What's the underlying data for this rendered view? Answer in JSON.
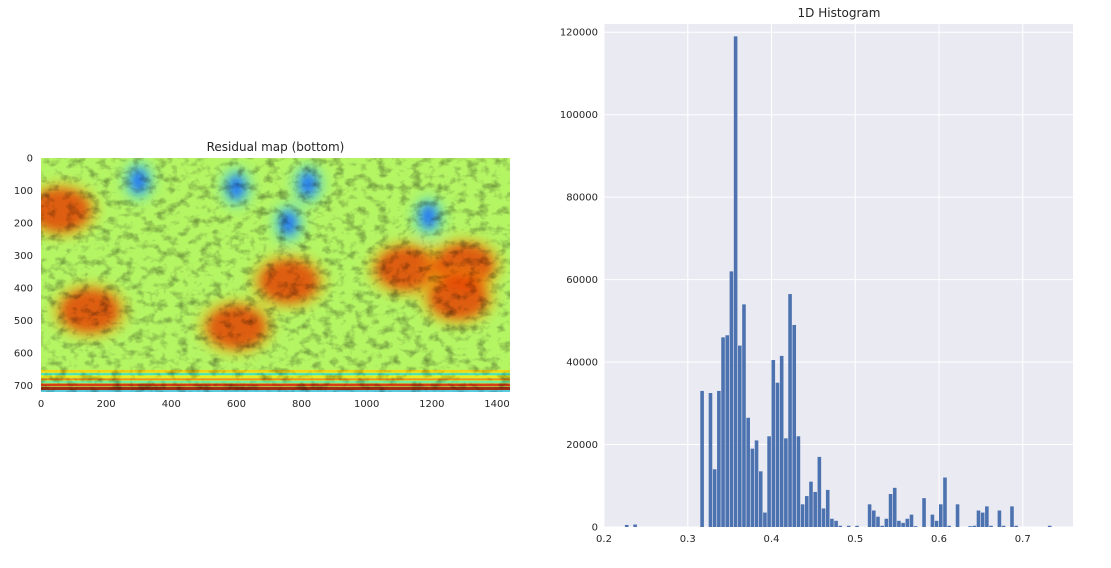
{
  "chart_data": [
    {
      "type": "heatmap",
      "title": "Residual map (bottom)",
      "colormap": "jet",
      "xlim": [
        0,
        1440
      ],
      "ylim": [
        720,
        0
      ],
      "xticks": [
        0,
        200,
        400,
        600,
        800,
        1000,
        1200,
        1400
      ],
      "yticks": [
        0,
        100,
        200,
        300,
        400,
        500,
        600,
        700
      ],
      "grid": false,
      "features": [
        {
          "x": 60,
          "y": 160,
          "kind": "high"
        },
        {
          "x": 150,
          "y": 470,
          "kind": "high"
        },
        {
          "x": 600,
          "y": 520,
          "kind": "high"
        },
        {
          "x": 760,
          "y": 380,
          "kind": "high"
        },
        {
          "x": 1120,
          "y": 340,
          "kind": "high"
        },
        {
          "x": 1300,
          "y": 330,
          "kind": "high"
        },
        {
          "x": 1280,
          "y": 430,
          "kind": "high"
        },
        {
          "x": 600,
          "y": 90,
          "kind": "low"
        },
        {
          "x": 820,
          "y": 80,
          "kind": "low"
        },
        {
          "x": 300,
          "y": 70,
          "kind": "low"
        },
        {
          "x": 1190,
          "y": 180,
          "kind": "low"
        },
        {
          "x": 760,
          "y": 200,
          "kind": "low"
        }
      ]
    },
    {
      "type": "bar",
      "title": "1D Histogram",
      "xlim": [
        0.2,
        0.76
      ],
      "ylim": [
        0,
        122000
      ],
      "xticks": [
        "0.2",
        "0.3",
        "0.4",
        "0.5",
        "0.6",
        "0.7"
      ],
      "yticks": [
        "0",
        "20000",
        "40000",
        "60000",
        "80000",
        "100000",
        "120000"
      ],
      "grid": true,
      "bin_width": 0.005,
      "bins": [
        {
          "x": 0.225,
          "y": 500
        },
        {
          "x": 0.235,
          "y": 600
        },
        {
          "x": 0.315,
          "y": 33000
        },
        {
          "x": 0.325,
          "y": 32500
        },
        {
          "x": 0.33,
          "y": 14000
        },
        {
          "x": 0.335,
          "y": 33000
        },
        {
          "x": 0.34,
          "y": 46000
        },
        {
          "x": 0.345,
          "y": 46500
        },
        {
          "x": 0.35,
          "y": 62000
        },
        {
          "x": 0.355,
          "y": 119000
        },
        {
          "x": 0.36,
          "y": 44000
        },
        {
          "x": 0.365,
          "y": 54000
        },
        {
          "x": 0.37,
          "y": 26500
        },
        {
          "x": 0.375,
          "y": 19000
        },
        {
          "x": 0.38,
          "y": 21000
        },
        {
          "x": 0.385,
          "y": 13500
        },
        {
          "x": 0.39,
          "y": 3500
        },
        {
          "x": 0.395,
          "y": 22000
        },
        {
          "x": 0.4,
          "y": 40500
        },
        {
          "x": 0.405,
          "y": 35000
        },
        {
          "x": 0.41,
          "y": 41500
        },
        {
          "x": 0.415,
          "y": 21500
        },
        {
          "x": 0.42,
          "y": 56500
        },
        {
          "x": 0.425,
          "y": 49000
        },
        {
          "x": 0.43,
          "y": 22000
        },
        {
          "x": 0.435,
          "y": 5500
        },
        {
          "x": 0.44,
          "y": 7500
        },
        {
          "x": 0.445,
          "y": 11000
        },
        {
          "x": 0.45,
          "y": 8500
        },
        {
          "x": 0.455,
          "y": 17000
        },
        {
          "x": 0.46,
          "y": 4500
        },
        {
          "x": 0.465,
          "y": 9000
        },
        {
          "x": 0.47,
          "y": 2000
        },
        {
          "x": 0.475,
          "y": 1500
        },
        {
          "x": 0.48,
          "y": 300
        },
        {
          "x": 0.49,
          "y": 300
        },
        {
          "x": 0.5,
          "y": 300
        },
        {
          "x": 0.515,
          "y": 5500
        },
        {
          "x": 0.52,
          "y": 4000
        },
        {
          "x": 0.525,
          "y": 2500
        },
        {
          "x": 0.53,
          "y": 300
        },
        {
          "x": 0.535,
          "y": 2000
        },
        {
          "x": 0.54,
          "y": 8000
        },
        {
          "x": 0.545,
          "y": 9500
        },
        {
          "x": 0.55,
          "y": 1500
        },
        {
          "x": 0.555,
          "y": 1000
        },
        {
          "x": 0.56,
          "y": 2000
        },
        {
          "x": 0.565,
          "y": 3000
        },
        {
          "x": 0.57,
          "y": 200
        },
        {
          "x": 0.58,
          "y": 7000
        },
        {
          "x": 0.59,
          "y": 3000
        },
        {
          "x": 0.595,
          "y": 1500
        },
        {
          "x": 0.6,
          "y": 5500
        },
        {
          "x": 0.605,
          "y": 12000
        },
        {
          "x": 0.61,
          "y": 300
        },
        {
          "x": 0.62,
          "y": 5500
        },
        {
          "x": 0.635,
          "y": 200
        },
        {
          "x": 0.64,
          "y": 300
        },
        {
          "x": 0.645,
          "y": 4000
        },
        {
          "x": 0.65,
          "y": 3500
        },
        {
          "x": 0.655,
          "y": 5000
        },
        {
          "x": 0.66,
          "y": 300
        },
        {
          "x": 0.67,
          "y": 4000
        },
        {
          "x": 0.675,
          "y": 300
        },
        {
          "x": 0.685,
          "y": 5000
        },
        {
          "x": 0.69,
          "y": 300
        },
        {
          "x": 0.73,
          "y": 300
        }
      ]
    }
  ]
}
